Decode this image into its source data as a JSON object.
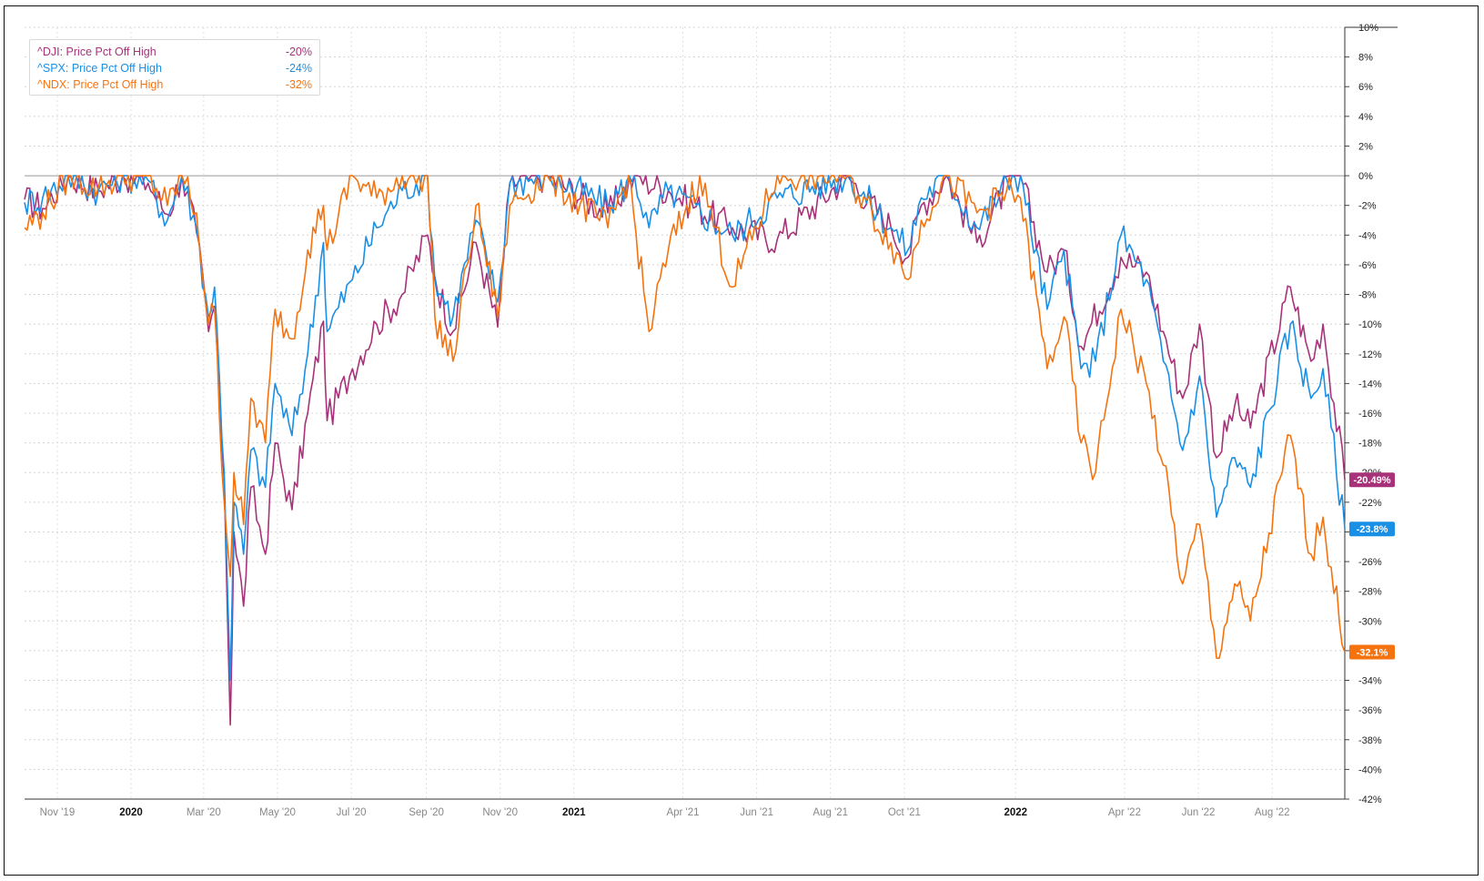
{
  "legend": [
    {
      "label": "^DJI: Price Pct Off High",
      "value": "-20%",
      "color": "#a83279"
    },
    {
      "label": "^SPX: Price Pct Off High",
      "value": "-24%",
      "color": "#1a8fe6"
    },
    {
      "label": "^NDX: Price Pct Off High",
      "value": "-32%",
      "color": "#f5730f"
    }
  ],
  "chart_data": {
    "type": "line",
    "x_ticks": [
      {
        "label": "Nov '19",
        "date": "2019-11-01",
        "bold": false
      },
      {
        "label": "2020",
        "date": "2020-01-01",
        "bold": true
      },
      {
        "label": "Mar '20",
        "date": "2020-03-01",
        "bold": false
      },
      {
        "label": "May '20",
        "date": "2020-05-01",
        "bold": false
      },
      {
        "label": "Jul '20",
        "date": "2020-07-01",
        "bold": false
      },
      {
        "label": "Sep '20",
        "date": "2020-09-01",
        "bold": false
      },
      {
        "label": "Nov '20",
        "date": "2020-11-01",
        "bold": false
      },
      {
        "label": "2021",
        "date": "2021-01-01",
        "bold": true
      },
      {
        "label": "Apr '21",
        "date": "2021-04-01",
        "bold": false
      },
      {
        "label": "Jun '21",
        "date": "2021-06-01",
        "bold": false
      },
      {
        "label": "Aug '21",
        "date": "2021-08-01",
        "bold": false
      },
      {
        "label": "Oct '21",
        "date": "2021-10-01",
        "bold": false
      },
      {
        "label": "2022",
        "date": "2022-01-01",
        "bold": true
      },
      {
        "label": "Apr '22",
        "date": "2022-04-01",
        "bold": false
      },
      {
        "label": "Jun '22",
        "date": "2022-06-01",
        "bold": false
      },
      {
        "label": "Aug '22",
        "date": "2022-08-01",
        "bold": false
      }
    ],
    "y_ticks": [
      "10%",
      "8%",
      "6%",
      "4%",
      "2%",
      "0%",
      "-2%",
      "-4%",
      "-6%",
      "-8%",
      "-10%",
      "-12%",
      "-14%",
      "-16%",
      "-18%",
      "-20%",
      "-22%",
      "-24%",
      "-26%",
      "-28%",
      "-30%",
      "-32%",
      "-34%",
      "-36%",
      "-38%",
      "-40%",
      "-42%"
    ],
    "ylim": [
      -42,
      10
    ],
    "xlim": [
      "2019-10-05",
      "2022-09-30"
    ],
    "grid": true,
    "legend_position": "top-left",
    "series": [
      {
        "name": "^DJI: Price Pct Off High",
        "color": "#a83279",
        "last_label": "-20.49%",
        "points": [
          [
            "2019-10-05",
            -1.6
          ],
          [
            "2019-10-20",
            -2.2
          ],
          [
            "2019-11-10",
            0
          ],
          [
            "2019-12-05",
            -1.0
          ],
          [
            "2019-12-25",
            0
          ],
          [
            "2020-01-15",
            -0.5
          ],
          [
            "2020-01-31",
            -2.6
          ],
          [
            "2020-02-12",
            0
          ],
          [
            "2020-02-24",
            -3.8
          ],
          [
            "2020-03-05",
            -10.5
          ],
          [
            "2020-03-10",
            -8.8
          ],
          [
            "2020-03-18",
            -20.5
          ],
          [
            "2020-03-23",
            -37.0
          ],
          [
            "2020-03-26",
            -24.0
          ],
          [
            "2020-04-03",
            -29.0
          ],
          [
            "2020-04-09",
            -21.0
          ],
          [
            "2020-04-21",
            -25.5
          ],
          [
            "2020-04-29",
            -18.0
          ],
          [
            "2020-05-13",
            -22.5
          ],
          [
            "2020-05-26",
            -16.0
          ],
          [
            "2020-06-08",
            -9.8
          ],
          [
            "2020-06-11",
            -16.5
          ],
          [
            "2020-07-02",
            -13.0
          ],
          [
            "2020-07-22",
            -10.0
          ],
          [
            "2020-08-12",
            -8.0
          ],
          [
            "2020-09-02",
            -4.0
          ],
          [
            "2020-09-08",
            -6.8
          ],
          [
            "2020-09-23",
            -10.5
          ],
          [
            "2020-10-12",
            -4.5
          ],
          [
            "2020-10-30",
            -10.2
          ],
          [
            "2020-11-09",
            -0.5
          ],
          [
            "2020-12-10",
            0
          ],
          [
            "2021-01-29",
            -2.5
          ],
          [
            "2021-02-20",
            0
          ],
          [
            "2021-03-20",
            -1.0
          ],
          [
            "2021-05-12",
            -3.5
          ],
          [
            "2021-06-18",
            -4.3
          ],
          [
            "2021-08-15",
            0
          ],
          [
            "2021-09-20",
            -3.5
          ],
          [
            "2021-10-04",
            -5.5
          ],
          [
            "2021-10-15",
            -2.0
          ],
          [
            "2021-11-05",
            0
          ],
          [
            "2021-11-30",
            -4.5
          ],
          [
            "2021-12-29",
            0
          ],
          [
            "2022-01-05",
            0
          ],
          [
            "2022-01-27",
            -6.5
          ],
          [
            "2022-02-10",
            -5.0
          ],
          [
            "2022-02-24",
            -11.5
          ],
          [
            "2022-03-29",
            -5.5
          ],
          [
            "2022-04-19",
            -6.5
          ],
          [
            "2022-05-03",
            -10.5
          ],
          [
            "2022-05-19",
            -15.0
          ],
          [
            "2022-06-02",
            -10.0
          ],
          [
            "2022-06-16",
            -19.0
          ],
          [
            "2022-07-01",
            -15.5
          ],
          [
            "2022-07-14",
            -17.0
          ],
          [
            "2022-08-16",
            -7.5
          ],
          [
            "2022-09-02",
            -12.5
          ],
          [
            "2022-09-12",
            -10.0
          ],
          [
            "2022-09-30",
            -20.49
          ]
        ]
      },
      {
        "name": "^SPX: Price Pct Off High",
        "color": "#1a8fe6",
        "last_label": "-23.8%",
        "points": [
          [
            "2019-10-05",
            -1.8
          ],
          [
            "2019-10-20",
            -1.5
          ],
          [
            "2019-11-10",
            0
          ],
          [
            "2019-12-05",
            -1.0
          ],
          [
            "2019-12-25",
            0
          ],
          [
            "2020-01-15",
            -0.3
          ],
          [
            "2020-01-31",
            -3.0
          ],
          [
            "2020-02-12",
            0
          ],
          [
            "2020-02-24",
            -3.5
          ],
          [
            "2020-03-05",
            -9.5
          ],
          [
            "2020-03-10",
            -7.5
          ],
          [
            "2020-03-18",
            -20.0
          ],
          [
            "2020-03-23",
            -34.0
          ],
          [
            "2020-03-26",
            -22.0
          ],
          [
            "2020-04-03",
            -25.5
          ],
          [
            "2020-04-09",
            -18.5
          ],
          [
            "2020-04-21",
            -21.0
          ],
          [
            "2020-04-29",
            -14.0
          ],
          [
            "2020-05-13",
            -17.5
          ],
          [
            "2020-05-26",
            -12.0
          ],
          [
            "2020-06-08",
            -4.5
          ],
          [
            "2020-06-11",
            -10.5
          ],
          [
            "2020-07-02",
            -7.0
          ],
          [
            "2020-07-22",
            -3.5
          ],
          [
            "2020-08-12",
            -1.0
          ],
          [
            "2020-09-02",
            0
          ],
          [
            "2020-09-08",
            -7.0
          ],
          [
            "2020-09-23",
            -9.5
          ],
          [
            "2020-10-12",
            -3.0
          ],
          [
            "2020-10-30",
            -8.5
          ],
          [
            "2020-11-09",
            -0.5
          ],
          [
            "2020-12-10",
            0
          ],
          [
            "2021-01-29",
            -2.0
          ],
          [
            "2021-02-20",
            0
          ],
          [
            "2021-03-04",
            -3.5
          ],
          [
            "2021-03-20",
            -1.0
          ],
          [
            "2021-05-12",
            -4.0
          ],
          [
            "2021-06-18",
            -1.5
          ],
          [
            "2021-08-15",
            0
          ],
          [
            "2021-09-20",
            -3.5
          ],
          [
            "2021-10-04",
            -5.0
          ],
          [
            "2021-10-15",
            -1.5
          ],
          [
            "2021-11-05",
            0
          ],
          [
            "2021-11-30",
            -3.5
          ],
          [
            "2021-12-29",
            0
          ],
          [
            "2022-01-05",
            0
          ],
          [
            "2022-01-27",
            -9.0
          ],
          [
            "2022-02-10",
            -5.0
          ],
          [
            "2022-02-24",
            -13.0
          ],
          [
            "2022-03-08",
            -12.5
          ],
          [
            "2022-03-29",
            -4.0
          ],
          [
            "2022-04-19",
            -7.0
          ],
          [
            "2022-05-03",
            -12.5
          ],
          [
            "2022-05-19",
            -18.5
          ],
          [
            "2022-06-02",
            -13.5
          ],
          [
            "2022-06-16",
            -23.0
          ],
          [
            "2022-07-01",
            -19.0
          ],
          [
            "2022-07-14",
            -21.0
          ],
          [
            "2022-08-16",
            -10.0
          ],
          [
            "2022-09-02",
            -15.0
          ],
          [
            "2022-09-12",
            -13.0
          ],
          [
            "2022-09-30",
            -23.8
          ]
        ]
      },
      {
        "name": "^NDX: Price Pct Off High",
        "color": "#f5730f",
        "last_label": "-32.1%",
        "points": [
          [
            "2019-10-05",
            -3.5
          ],
          [
            "2019-10-20",
            -2.5
          ],
          [
            "2019-11-10",
            0
          ],
          [
            "2019-12-05",
            -0.8
          ],
          [
            "2019-12-25",
            0
          ],
          [
            "2020-01-15",
            0
          ],
          [
            "2020-01-31",
            -2.0
          ],
          [
            "2020-02-12",
            0
          ],
          [
            "2020-02-24",
            -2.5
          ],
          [
            "2020-03-05",
            -10.0
          ],
          [
            "2020-03-10",
            -9.0
          ],
          [
            "2020-03-18",
            -22.0
          ],
          [
            "2020-03-23",
            -27.0
          ],
          [
            "2020-03-26",
            -20.0
          ],
          [
            "2020-04-03",
            -23.5
          ],
          [
            "2020-04-09",
            -15.0
          ],
          [
            "2020-04-21",
            -18.0
          ],
          [
            "2020-04-29",
            -9.0
          ],
          [
            "2020-05-13",
            -11.0
          ],
          [
            "2020-05-26",
            -5.0
          ],
          [
            "2020-06-08",
            -2.0
          ],
          [
            "2020-06-11",
            -5.0
          ],
          [
            "2020-07-02",
            0
          ],
          [
            "2020-07-22",
            -1.5
          ],
          [
            "2020-08-12",
            0
          ],
          [
            "2020-09-02",
            0
          ],
          [
            "2020-09-08",
            -9.5
          ],
          [
            "2020-09-23",
            -12.5
          ],
          [
            "2020-10-12",
            -2.0
          ],
          [
            "2020-10-30",
            -9.5
          ],
          [
            "2020-11-09",
            -2.0
          ],
          [
            "2020-12-10",
            0
          ],
          [
            "2021-01-29",
            -3.5
          ],
          [
            "2021-02-15",
            0
          ],
          [
            "2021-03-04",
            -10.5
          ],
          [
            "2021-03-20",
            -5.0
          ],
          [
            "2021-04-15",
            0
          ],
          [
            "2021-05-12",
            -7.5
          ],
          [
            "2021-06-18",
            0
          ],
          [
            "2021-08-15",
            0
          ],
          [
            "2021-09-20",
            -4.5
          ],
          [
            "2021-10-04",
            -7.0
          ],
          [
            "2021-10-15",
            -3.0
          ],
          [
            "2021-11-05",
            0
          ],
          [
            "2021-11-30",
            -2.5
          ],
          [
            "2021-12-29",
            -1.0
          ],
          [
            "2022-01-05",
            -1.5
          ],
          [
            "2022-01-27",
            -13.0
          ],
          [
            "2022-02-10",
            -9.5
          ],
          [
            "2022-02-24",
            -18.0
          ],
          [
            "2022-03-08",
            -20.0
          ],
          [
            "2022-03-29",
            -9.0
          ],
          [
            "2022-04-19",
            -14.0
          ],
          [
            "2022-05-03",
            -19.5
          ],
          [
            "2022-05-19",
            -27.5
          ],
          [
            "2022-06-02",
            -23.5
          ],
          [
            "2022-06-16",
            -32.5
          ],
          [
            "2022-07-01",
            -27.5
          ],
          [
            "2022-07-14",
            -30.0
          ],
          [
            "2022-08-16",
            -17.5
          ],
          [
            "2022-09-02",
            -25.5
          ],
          [
            "2022-09-12",
            -23.0
          ],
          [
            "2022-09-30",
            -32.1
          ]
        ]
      }
    ]
  }
}
